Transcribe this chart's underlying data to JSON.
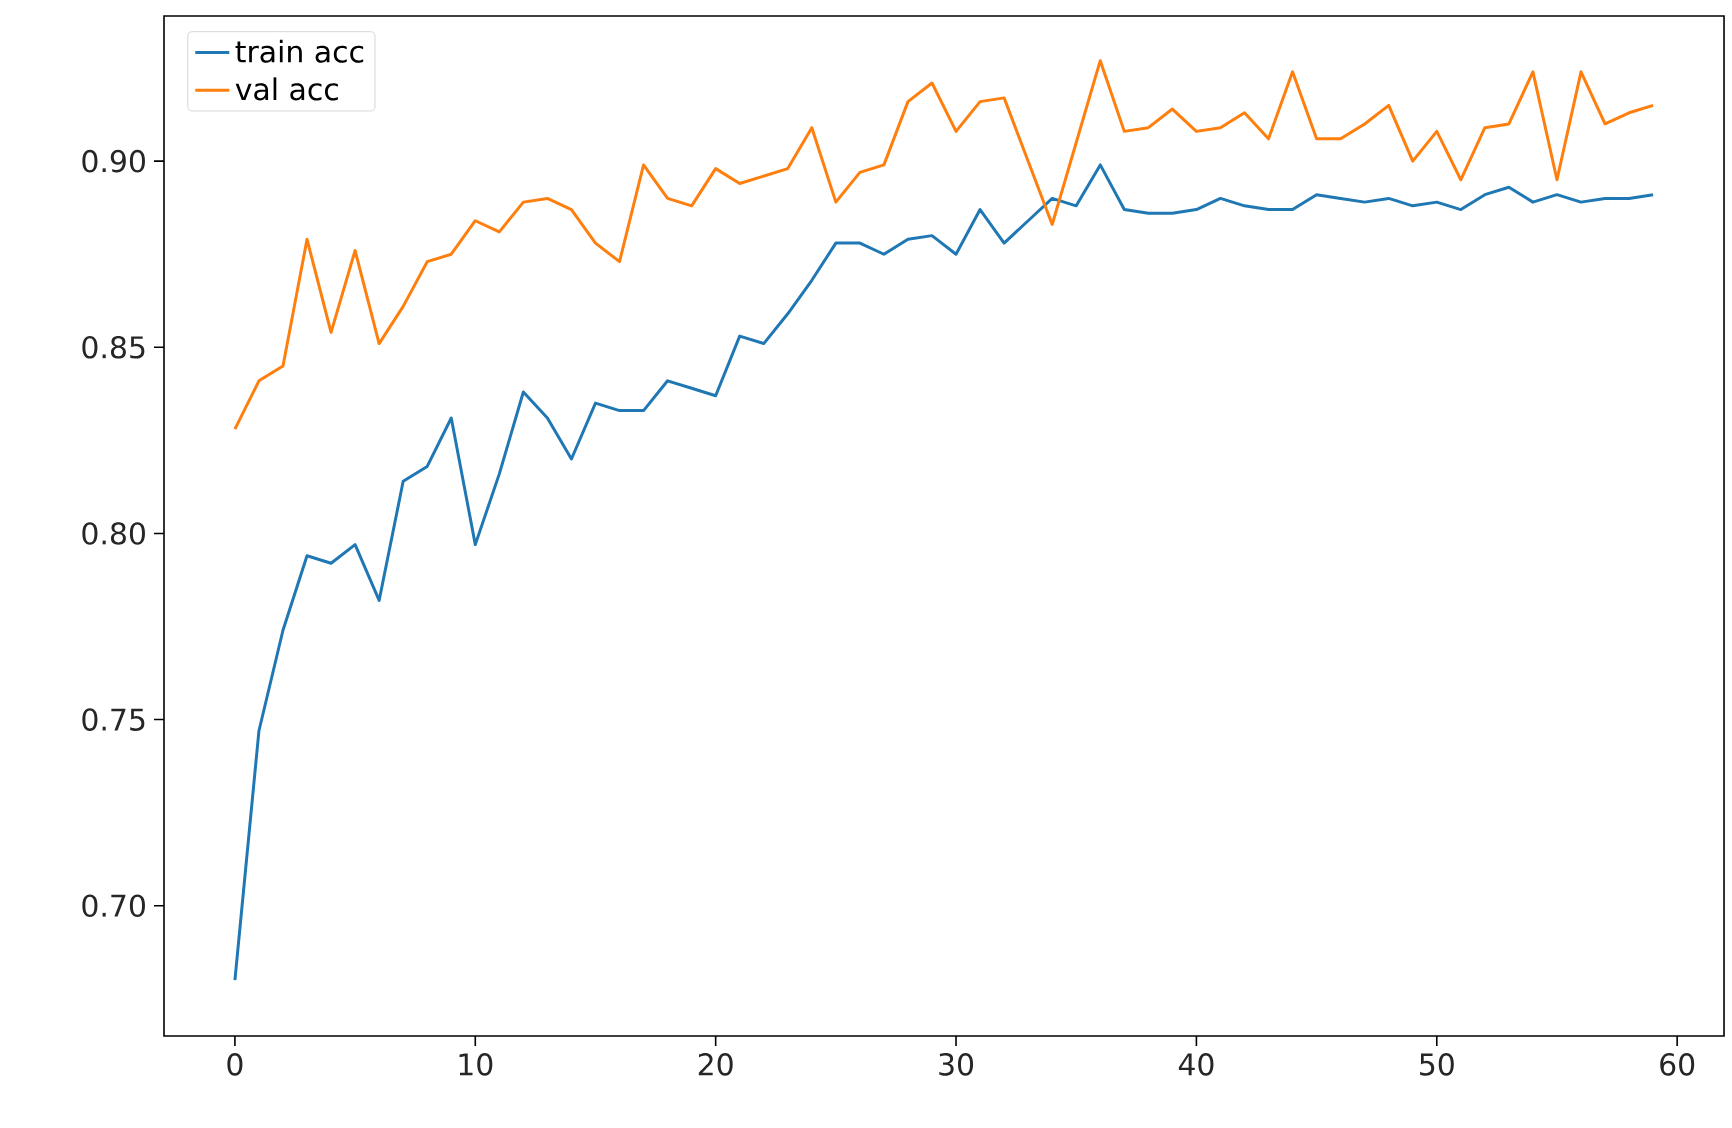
{
  "chart_data": {
    "type": "line",
    "x": [
      0,
      1,
      2,
      3,
      4,
      5,
      6,
      7,
      8,
      9,
      10,
      11,
      12,
      13,
      14,
      15,
      16,
      17,
      18,
      19,
      20,
      21,
      22,
      23,
      24,
      25,
      26,
      27,
      28,
      29,
      30,
      31,
      32,
      33,
      34,
      35,
      36,
      37,
      38,
      39,
      40,
      41,
      42,
      43,
      44,
      45,
      46,
      47,
      48,
      49,
      50,
      51,
      52,
      53,
      54,
      55,
      56,
      57,
      58,
      59
    ],
    "series": [
      {
        "name": "train acc",
        "color": "#1f77b4",
        "values": [
          0.68,
          0.747,
          0.774,
          0.794,
          0.792,
          0.797,
          0.782,
          0.814,
          0.818,
          0.831,
          0.797,
          0.816,
          0.838,
          0.831,
          0.82,
          0.835,
          0.833,
          0.833,
          0.841,
          0.839,
          0.837,
          0.853,
          0.851,
          0.859,
          0.868,
          0.878,
          0.878,
          0.875,
          0.879,
          0.88,
          0.875,
          0.887,
          0.878,
          0.884,
          0.89,
          0.888,
          0.899,
          0.887,
          0.886,
          0.886,
          0.887,
          0.89,
          0.888,
          0.887,
          0.887,
          0.891,
          0.89,
          0.889,
          0.89,
          0.888,
          0.889,
          0.887,
          0.891,
          0.893,
          0.889,
          0.891,
          0.889,
          0.89,
          0.89,
          0.891
        ]
      },
      {
        "name": "val acc",
        "color": "#ff7f0e",
        "values": [
          0.828,
          0.841,
          0.845,
          0.879,
          0.854,
          0.876,
          0.851,
          0.861,
          0.873,
          0.875,
          0.884,
          0.881,
          0.889,
          0.89,
          0.887,
          0.878,
          0.873,
          0.899,
          0.89,
          0.888,
          0.898,
          0.894,
          0.896,
          0.898,
          0.909,
          0.889,
          0.897,
          0.899,
          0.916,
          0.921,
          0.908,
          0.916,
          0.917,
          0.9,
          0.883,
          0.905,
          0.927,
          0.908,
          0.909,
          0.914,
          0.908,
          0.909,
          0.913,
          0.906,
          0.924,
          0.906,
          0.906,
          0.91,
          0.915,
          0.9,
          0.908,
          0.895,
          0.909,
          0.91,
          0.924,
          0.895,
          0.924,
          0.91,
          0.913,
          0.915
        ]
      }
    ],
    "xlim": [
      -2.95,
      61.95
    ],
    "ylim": [
      0.665,
      0.939
    ],
    "xticks": [
      0,
      10,
      20,
      30,
      40,
      50,
      60
    ],
    "yticks": [
      {
        "value": 0.7,
        "label": "0.70"
      },
      {
        "value": 0.75,
        "label": "0.75"
      },
      {
        "value": 0.8,
        "label": "0.80"
      },
      {
        "value": 0.85,
        "label": "0.85"
      },
      {
        "value": 0.9,
        "label": "0.90"
      }
    ],
    "grid": false,
    "legend": "top left",
    "marker": "none",
    "line_style": "solid"
  }
}
